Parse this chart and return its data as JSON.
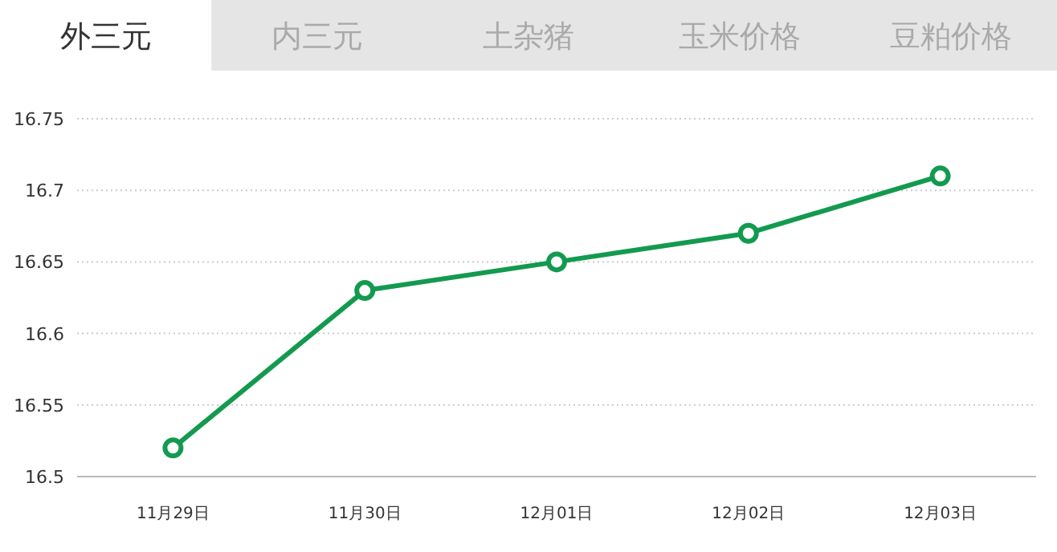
{
  "chart_data": {
    "type": "line",
    "title": "外三元",
    "annotations": [
      "内三元",
      "土杂猪",
      "玉米价格",
      "豆粕价格"
    ],
    "categories": [
      "11月29日",
      "11月30日",
      "12月01日",
      "12月02日",
      "12月03日"
    ],
    "series": [
      {
        "color": "#139a4f",
        "values": [
          16.52,
          16.63,
          16.65,
          16.67,
          16.71
        ]
      }
    ],
    "ylim": [
      16.5,
      16.75
    ],
    "yticks": [
      16.5,
      16.55,
      16.6,
      16.65,
      16.7,
      16.75
    ],
    "grid": "y",
    "marker": "circle",
    "line_style": "solid"
  }
}
